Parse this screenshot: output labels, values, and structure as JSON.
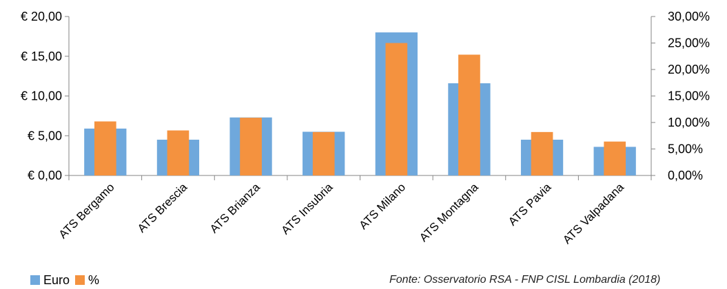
{
  "chart_data": {
    "type": "bar",
    "categories": [
      "ATS Bergamo",
      "ATS Brescia",
      "ATS Brianza",
      "ATS Insubria",
      "ATS Milano",
      "ATS Montagna",
      "ATS Pavia",
      "ATS Valpadana"
    ],
    "series": [
      {
        "name": "Euro",
        "axis": "left",
        "color": "#6FA8DC",
        "values": [
          5.9,
          4.5,
          7.3,
          5.5,
          18.0,
          11.6,
          4.5,
          3.6
        ]
      },
      {
        "name": "%",
        "axis": "right",
        "color": "#F4923F",
        "values": [
          10.2,
          8.5,
          10.9,
          8.2,
          25.0,
          22.8,
          8.2,
          6.4
        ]
      }
    ],
    "yleft": {
      "min": 0,
      "max": 20,
      "ticks": [
        "€ 0,00",
        "€ 5,00",
        "€ 10,00",
        "€ 15,00",
        "€ 20,00"
      ]
    },
    "yright": {
      "min": 0,
      "max": 30,
      "ticks": [
        "0,00%",
        "5,00%",
        "10,00%",
        "15,00%",
        "20,00%",
        "25,00%",
        "30,00%"
      ]
    },
    "grid": false,
    "legend_position": "bottom-left"
  },
  "legend": {
    "items": [
      {
        "label": "Euro",
        "color": "#6FA8DC"
      },
      {
        "label": "%",
        "color": "#F4923F"
      }
    ]
  },
  "source": {
    "lead": "Fonte:",
    "text": " Osservatorio RSA - FNP CISL Lombardia (2018)"
  }
}
